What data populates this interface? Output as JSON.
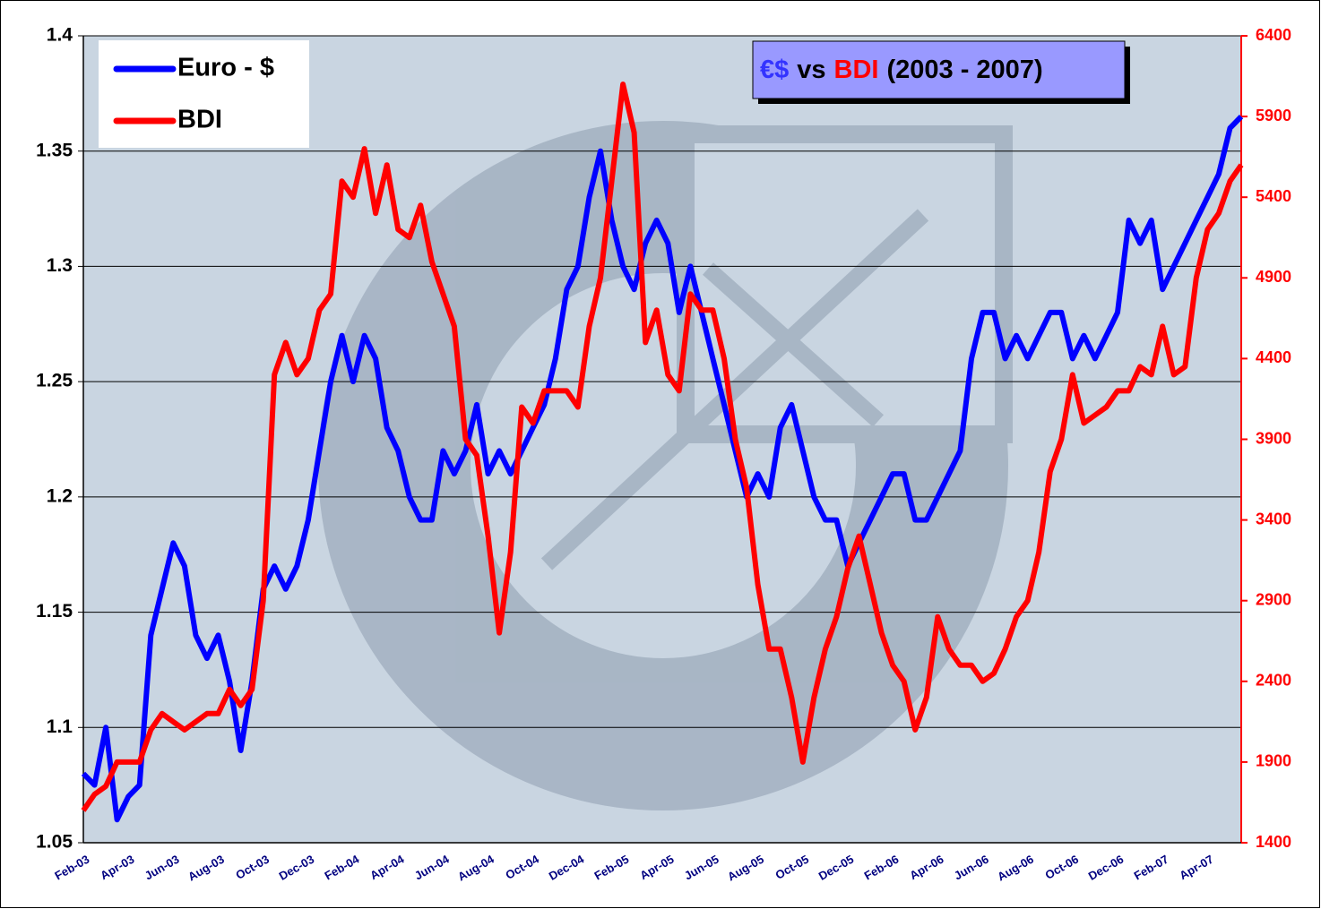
{
  "chart_data": {
    "type": "line",
    "title": [
      {
        "text": "€$",
        "color": "#3333ff"
      },
      {
        "text": "vs",
        "color": "#000000"
      },
      {
        "text": "BDI",
        "color": "#ff0000"
      },
      {
        "text": "(2003 - 2007)",
        "color": "#000000"
      }
    ],
    "categories": [
      "Feb-03",
      null,
      null,
      null,
      "Apr-03",
      null,
      null,
      null,
      "Jun-03",
      null,
      null,
      null,
      "Aug-03",
      null,
      null,
      null,
      "Oct-03",
      null,
      null,
      null,
      "Dec-03",
      null,
      null,
      null,
      "Feb-04",
      null,
      null,
      null,
      "Apr-04",
      null,
      null,
      null,
      "Jun-04",
      null,
      null,
      null,
      "Aug-04",
      null,
      null,
      null,
      "Oct-04",
      null,
      null,
      null,
      "Dec-04",
      null,
      null,
      null,
      "Feb-05",
      null,
      null,
      null,
      "Apr-05",
      null,
      null,
      null,
      "Jun-05",
      null,
      null,
      null,
      "Aug-05",
      null,
      null,
      null,
      "Oct-05",
      null,
      null,
      null,
      "Dec-05",
      null,
      null,
      null,
      "Feb-06",
      null,
      null,
      null,
      "Apr-06",
      null,
      null,
      null,
      "Jun-06",
      null,
      null,
      null,
      "Aug-06",
      null,
      null,
      null,
      "Oct-06",
      null,
      null,
      null,
      "Dec-06",
      null,
      null,
      null,
      "Feb-07",
      null,
      null,
      null,
      "Apr-07",
      null,
      null,
      null
    ],
    "series": [
      {
        "name": "Euro - $",
        "color": "#0000ff",
        "axis": "y",
        "values": [
          1.08,
          1.075,
          1.1,
          1.06,
          1.07,
          1.075,
          1.14,
          1.16,
          1.18,
          1.17,
          1.14,
          1.13,
          1.14,
          1.12,
          1.09,
          1.12,
          1.16,
          1.17,
          1.16,
          1.17,
          1.19,
          1.22,
          1.25,
          1.27,
          1.25,
          1.27,
          1.26,
          1.23,
          1.22,
          1.2,
          1.19,
          1.19,
          1.22,
          1.21,
          1.22,
          1.24,
          1.21,
          1.22,
          1.21,
          1.22,
          1.23,
          1.24,
          1.26,
          1.29,
          1.3,
          1.33,
          1.35,
          1.32,
          1.3,
          1.29,
          1.31,
          1.32,
          1.31,
          1.28,
          1.3,
          1.28,
          1.26,
          1.24,
          1.22,
          1.2,
          1.21,
          1.2,
          1.23,
          1.24,
          1.22,
          1.2,
          1.19,
          1.19,
          1.17,
          1.18,
          1.19,
          1.2,
          1.21,
          1.21,
          1.19,
          1.19,
          1.2,
          1.21,
          1.22,
          1.26,
          1.28,
          1.28,
          1.26,
          1.27,
          1.26,
          1.27,
          1.28,
          1.28,
          1.26,
          1.27,
          1.26,
          1.27,
          1.28,
          1.32,
          1.31,
          1.32,
          1.29,
          1.3,
          1.31,
          1.32,
          1.33,
          1.34,
          1.36,
          1.365
        ]
      },
      {
        "name": "BDI",
        "color": "#ff0000",
        "axis": "y2",
        "values": [
          1600,
          1700,
          1750,
          1900,
          1900,
          1900,
          2100,
          2200,
          2150,
          2100,
          2150,
          2200,
          2200,
          2350,
          2250,
          2350,
          2900,
          4300,
          4500,
          4300,
          4400,
          4700,
          4800,
          5500,
          5400,
          5700,
          5300,
          5600,
          5200,
          5150,
          5350,
          5000,
          4800,
          4600,
          3900,
          3800,
          3300,
          2700,
          3200,
          4100,
          4000,
          4200,
          4200,
          4200,
          4100,
          4600,
          4900,
          5500,
          6100,
          5800,
          4500,
          4700,
          4300,
          4200,
          4800,
          4700,
          4700,
          4400,
          3900,
          3600,
          3000,
          2600,
          2600,
          2300,
          1900,
          2300,
          2600,
          2800,
          3100,
          3300,
          3000,
          2700,
          2500,
          2400,
          2100,
          2300,
          2800,
          2600,
          2500,
          2500,
          2400,
          2450,
          2600,
          2800,
          2900,
          3200,
          3700,
          3900,
          4300,
          4000,
          4050,
          4100,
          4200,
          4200,
          4350,
          4300,
          4600,
          4300,
          4350,
          4900,
          5200,
          5300,
          5500,
          5600
        ]
      }
    ],
    "ylim": [
      1.05,
      1.4
    ],
    "yticks": [
      1.05,
      1.1,
      1.15,
      1.2,
      1.25,
      1.3,
      1.35,
      1.4
    ],
    "y2lim": [
      1400,
      6400
    ],
    "y2ticks": [
      1400,
      1900,
      2400,
      2900,
      3400,
      3900,
      4400,
      4900,
      5400,
      5900,
      6400
    ],
    "grid": true,
    "legend": "top-left"
  }
}
